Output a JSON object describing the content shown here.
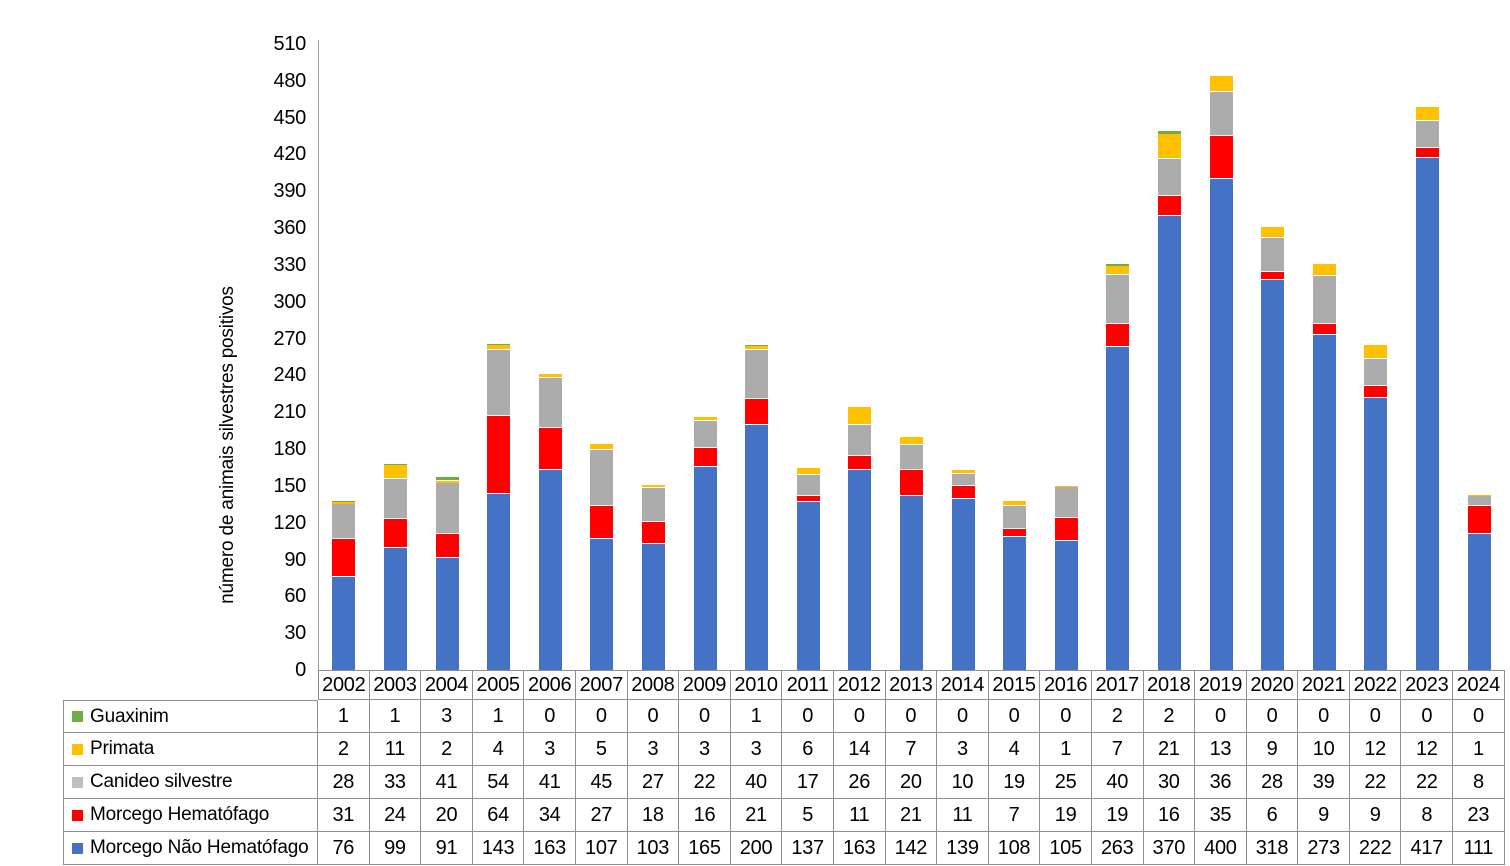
{
  "chart_data": {
    "type": "bar",
    "stacked": true,
    "ylabel": "número de animais silvestres positivos",
    "xlabel": "",
    "ylim": [
      0,
      510
    ],
    "yticks": [
      0,
      30,
      60,
      90,
      120,
      150,
      180,
      210,
      240,
      270,
      300,
      330,
      360,
      390,
      420,
      450,
      480,
      510
    ],
    "grid": false,
    "legend_position": "table-rows-left",
    "categories": [
      "2002",
      "2003",
      "2004",
      "2005",
      "2006",
      "2007",
      "2008",
      "2009",
      "2010",
      "2011",
      "2012",
      "2013",
      "2014",
      "2015",
      "2016",
      "2017",
      "2018",
      "2019",
      "2020",
      "2021",
      "2022",
      "2023",
      "2024"
    ],
    "series": [
      {
        "name": "Guaxinim",
        "color": "#70AD47",
        "swatch_color": "#70AD47",
        "values": [
          1,
          1,
          3,
          1,
          0,
          0,
          0,
          0,
          1,
          0,
          0,
          0,
          0,
          0,
          0,
          2,
          2,
          0,
          0,
          0,
          0,
          0,
          0
        ]
      },
      {
        "name": "Primata",
        "color": "#FFC000",
        "swatch_color": "#FFC000",
        "values": [
          2,
          11,
          2,
          4,
          3,
          5,
          3,
          3,
          3,
          6,
          14,
          7,
          3,
          4,
          1,
          7,
          21,
          13,
          9,
          10,
          12,
          12,
          1
        ]
      },
      {
        "name": "Canideo silvestre",
        "color": "#ACACAC",
        "swatch_color": "#BFBFBF",
        "values": [
          28,
          33,
          41,
          54,
          41,
          45,
          27,
          22,
          40,
          17,
          26,
          20,
          10,
          19,
          25,
          40,
          30,
          36,
          28,
          39,
          22,
          22,
          8
        ]
      },
      {
        "name": "Morcego Hematófago",
        "color": "#FF0000",
        "swatch_color": "#FF0000",
        "values": [
          31,
          24,
          20,
          64,
          34,
          27,
          18,
          16,
          21,
          5,
          11,
          21,
          11,
          7,
          19,
          19,
          16,
          35,
          6,
          9,
          9,
          8,
          23
        ]
      },
      {
        "name": "Morcego Não Hematófago",
        "color": "#4472C4",
        "swatch_color": "#4472C4",
        "values": [
          76,
          99,
          91,
          143,
          163,
          107,
          103,
          165,
          200,
          137,
          163,
          142,
          139,
          108,
          105,
          263,
          370,
          400,
          318,
          273,
          222,
          417,
          111
        ]
      }
    ],
    "stack_order_bottom_to_top": [
      4,
      3,
      2,
      1,
      0
    ]
  },
  "colors": {
    "axis_line": "#9e9e9e",
    "table_border": "#8f8f8f",
    "segment_separator": "#ffffff"
  }
}
